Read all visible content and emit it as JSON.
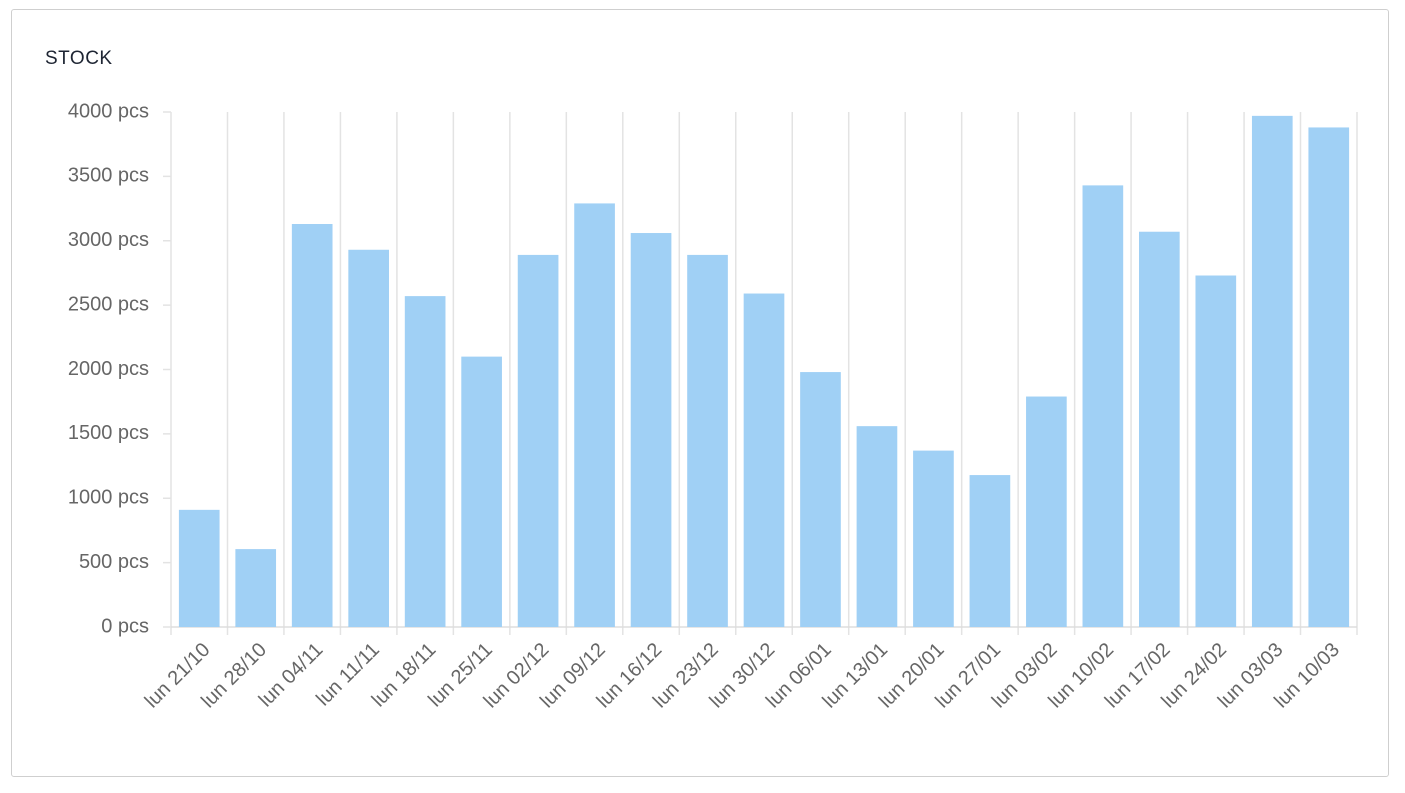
{
  "chart_data": {
    "type": "bar",
    "title": "STOCK",
    "categories": [
      "lun 21/10",
      "lun 28/10",
      "lun 04/11",
      "lun 11/11",
      "lun 18/11",
      "lun 25/11",
      "lun 02/12",
      "lun 09/12",
      "lun 16/12",
      "lun 23/12",
      "lun 30/12",
      "lun 06/01",
      "lun 13/01",
      "lun 20/01",
      "lun 27/01",
      "lun 03/02",
      "lun 10/02",
      "lun 17/02",
      "lun 24/02",
      "lun 03/03",
      "lun 10/03"
    ],
    "values": [
      910,
      605,
      3130,
      2930,
      2570,
      2100,
      2890,
      3290,
      3060,
      2890,
      2590,
      1980,
      1560,
      1370,
      1180,
      1790,
      3430,
      3070,
      2730,
      3970,
      3880
    ],
    "color": "#a0d0f5",
    "ylim": [
      0,
      4000
    ],
    "yticks": [
      {
        "value": 0,
        "label": "0 pcs"
      },
      {
        "value": 500,
        "label": "500 pcs"
      },
      {
        "value": 1000,
        "label": "1000 pcs"
      },
      {
        "value": 1500,
        "label": "1500 pcs"
      },
      {
        "value": 2000,
        "label": "2000 pcs"
      },
      {
        "value": 2500,
        "label": "2500 pcs"
      },
      {
        "value": 3000,
        "label": "3000 pcs"
      },
      {
        "value": 3500,
        "label": "3500 pcs"
      },
      {
        "value": 4000,
        "label": "4000 pcs"
      }
    ],
    "grid": true
  }
}
